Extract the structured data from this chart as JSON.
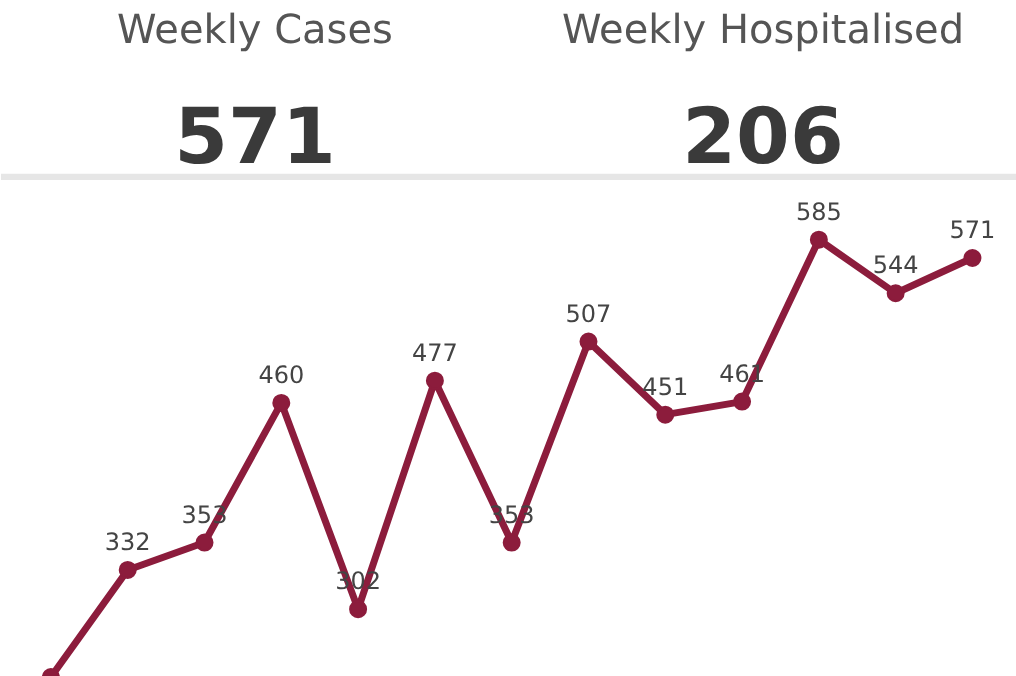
{
  "chart_data": [
    {
      "type": "other",
      "categories": [
        "Weekly Cases",
        "Weekly Hospitalised"
      ],
      "values": [
        571,
        206
      ],
      "data_labels": true
    },
    {
      "type": "line",
      "categories": [
        null,
        null,
        null,
        null,
        null,
        null,
        null,
        null,
        null,
        null,
        null,
        null,
        null
      ],
      "values": [
        250,
        332,
        353,
        460,
        302,
        477,
        353,
        507,
        451,
        461,
        585,
        544,
        571
      ],
      "value_labels": [
        null,
        "332",
        "353",
        "460",
        "302",
        "477",
        "353",
        "507",
        "451",
        "461",
        "585",
        "544",
        "571"
      ],
      "color": "#8c1c3c",
      "marker": "circle",
      "ylim": [
        250,
        630
      ],
      "tick_labels": false
    }
  ]
}
